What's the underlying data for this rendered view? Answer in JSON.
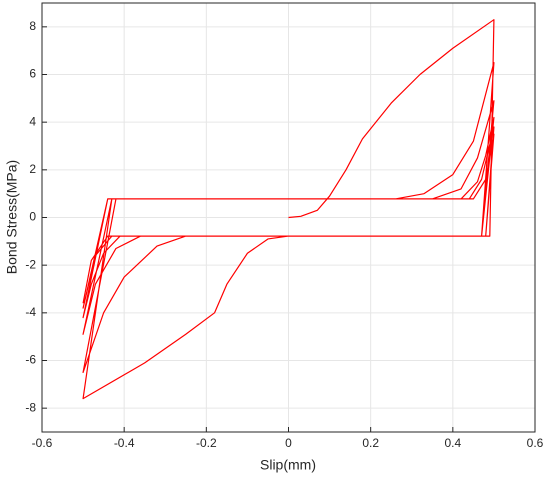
{
  "chart_data": {
    "type": "line",
    "xlabel": "Slip(mm)",
    "ylabel": "Bond Stress(MPa)",
    "x": [
      0,
      0.03,
      0.07,
      0.1,
      0.14,
      0.18,
      0.25,
      0.32,
      0.4,
      0.5,
      0.49,
      0.0,
      -0.05,
      -0.1,
      -0.15,
      -0.18,
      -0.25,
      -0.35,
      -0.5,
      -0.43,
      0.26,
      0.33,
      0.4,
      0.45,
      0.5,
      0.47,
      -0.25,
      -0.32,
      -0.4,
      -0.45,
      -0.5,
      -0.42,
      0.35,
      0.42,
      0.46,
      0.5,
      0.47,
      -0.36,
      -0.42,
      -0.47,
      -0.5,
      -0.43,
      0.42,
      0.46,
      0.48,
      0.5,
      0.47,
      -0.41,
      -0.45,
      -0.48,
      -0.5,
      -0.44,
      0.44,
      0.47,
      0.5,
      0.48,
      -0.43,
      -0.47,
      -0.5,
      -0.44,
      0.45,
      0.48,
      0.5,
      0.48,
      -0.44,
      -0.48,
      -0.5
    ],
    "values": [
      0,
      0.05,
      0.3,
      0.9,
      2,
      3.3,
      4.8,
      6.0,
      7.1,
      8.3,
      -0.78,
      -0.78,
      -0.9,
      -1.5,
      -2.8,
      -4,
      -4.9,
      -6.1,
      -7.6,
      0.78,
      0.78,
      1.0,
      1.8,
      3.2,
      6.5,
      -0.78,
      -0.78,
      -1.2,
      -2.5,
      -4,
      -6.5,
      0.78,
      0.78,
      1.2,
      2.5,
      4.9,
      -0.78,
      -0.78,
      -1.3,
      -2.8,
      -4.9,
      0.78,
      0.78,
      1.5,
      2.6,
      4.2,
      -0.78,
      -0.78,
      -1.5,
      -2.8,
      -4.2,
      0.78,
      0.78,
      1.6,
      3.8,
      -0.78,
      -0.78,
      -1.6,
      -3.8,
      0.78,
      0.78,
      1.6,
      3.5,
      -0.78,
      -0.78,
      -1.8,
      -3.6
    ],
    "color": "#ff0000",
    "xlim": [
      -0.6,
      0.6
    ],
    "xticks": [
      -0.6,
      -0.4,
      -0.2,
      0,
      0.2,
      0.4,
      0.6
    ],
    "ylim": [
      -9,
      9
    ],
    "yticks": [
      -8,
      -6,
      -4,
      -2,
      0,
      2,
      4,
      6,
      8
    ],
    "grid": true
  }
}
